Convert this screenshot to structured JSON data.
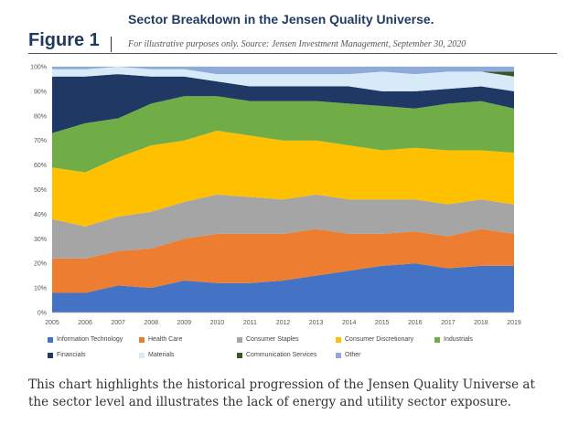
{
  "figure": {
    "label": "Figure 1",
    "title": "Sector Breakdown in the Jensen Quality Universe.",
    "subtitle": "For illustrative purposes only. Source: Jensen Investment Management, September 30, 2020",
    "caption": "This chart highlights the historical progression of the Jensen Quality Universe at the sector level and illustrates the lack of energy and utility sector exposure."
  },
  "chart_data": {
    "type": "area",
    "stacked": true,
    "x": [
      2005,
      2006,
      2007,
      2008,
      2009,
      2010,
      2011,
      2012,
      2013,
      2014,
      2015,
      2016,
      2017,
      2018,
      2019
    ],
    "ylim": [
      0,
      100
    ],
    "yticks": [
      "0%",
      "10%",
      "20%",
      "30%",
      "40%",
      "50%",
      "60%",
      "70%",
      "80%",
      "90%",
      "100%"
    ],
    "xlabel": "",
    "ylabel": "",
    "grid": true,
    "legend_position": "bottom",
    "series": [
      {
        "name": "Information Technology",
        "color": "#4472c4",
        "values": [
          8,
          8,
          11,
          10,
          13,
          12,
          12,
          13,
          15,
          17,
          19,
          20,
          18,
          19,
          19
        ]
      },
      {
        "name": "Health Care",
        "color": "#ed7d31",
        "values": [
          14,
          14,
          14,
          16,
          17,
          20,
          20,
          19,
          19,
          15,
          13,
          13,
          13,
          15,
          13
        ]
      },
      {
        "name": "Consumer Staples",
        "color": "#a5a5a5",
        "values": [
          16,
          13,
          14,
          15,
          15,
          16,
          15,
          14,
          14,
          14,
          14,
          13,
          13,
          12,
          12
        ]
      },
      {
        "name": "Consumer Discretionary",
        "color": "#ffc000",
        "values": [
          21,
          22,
          24,
          27,
          25,
          26,
          25,
          24,
          22,
          22,
          20,
          21,
          22,
          20,
          21
        ]
      },
      {
        "name": "Industrials",
        "color": "#70ad47",
        "values": [
          14,
          20,
          16,
          17,
          18,
          14,
          14,
          16,
          16,
          17,
          18,
          16,
          19,
          20,
          18
        ]
      },
      {
        "name": "Financials",
        "color": "#1f3864",
        "values": [
          23,
          19,
          18,
          11,
          8,
          6,
          6,
          6,
          6,
          7,
          6,
          7,
          6,
          6,
          7
        ]
      },
      {
        "name": "Materials",
        "color": "#d6eaf8",
        "values": [
          3,
          3,
          3,
          3,
          3,
          3,
          5,
          5,
          5,
          5,
          8,
          7,
          7,
          6,
          6
        ]
      },
      {
        "name": "Communication Services",
        "color": "#375623",
        "values": [
          0,
          0,
          0,
          0,
          0,
          0,
          0,
          0,
          0,
          0,
          0,
          0,
          0,
          0,
          2
        ]
      },
      {
        "name": "Other",
        "color": "#8eaadb",
        "values": [
          1,
          1,
          0,
          1,
          1,
          3,
          3,
          3,
          3,
          3,
          2,
          3,
          2,
          2,
          2
        ]
      }
    ]
  }
}
